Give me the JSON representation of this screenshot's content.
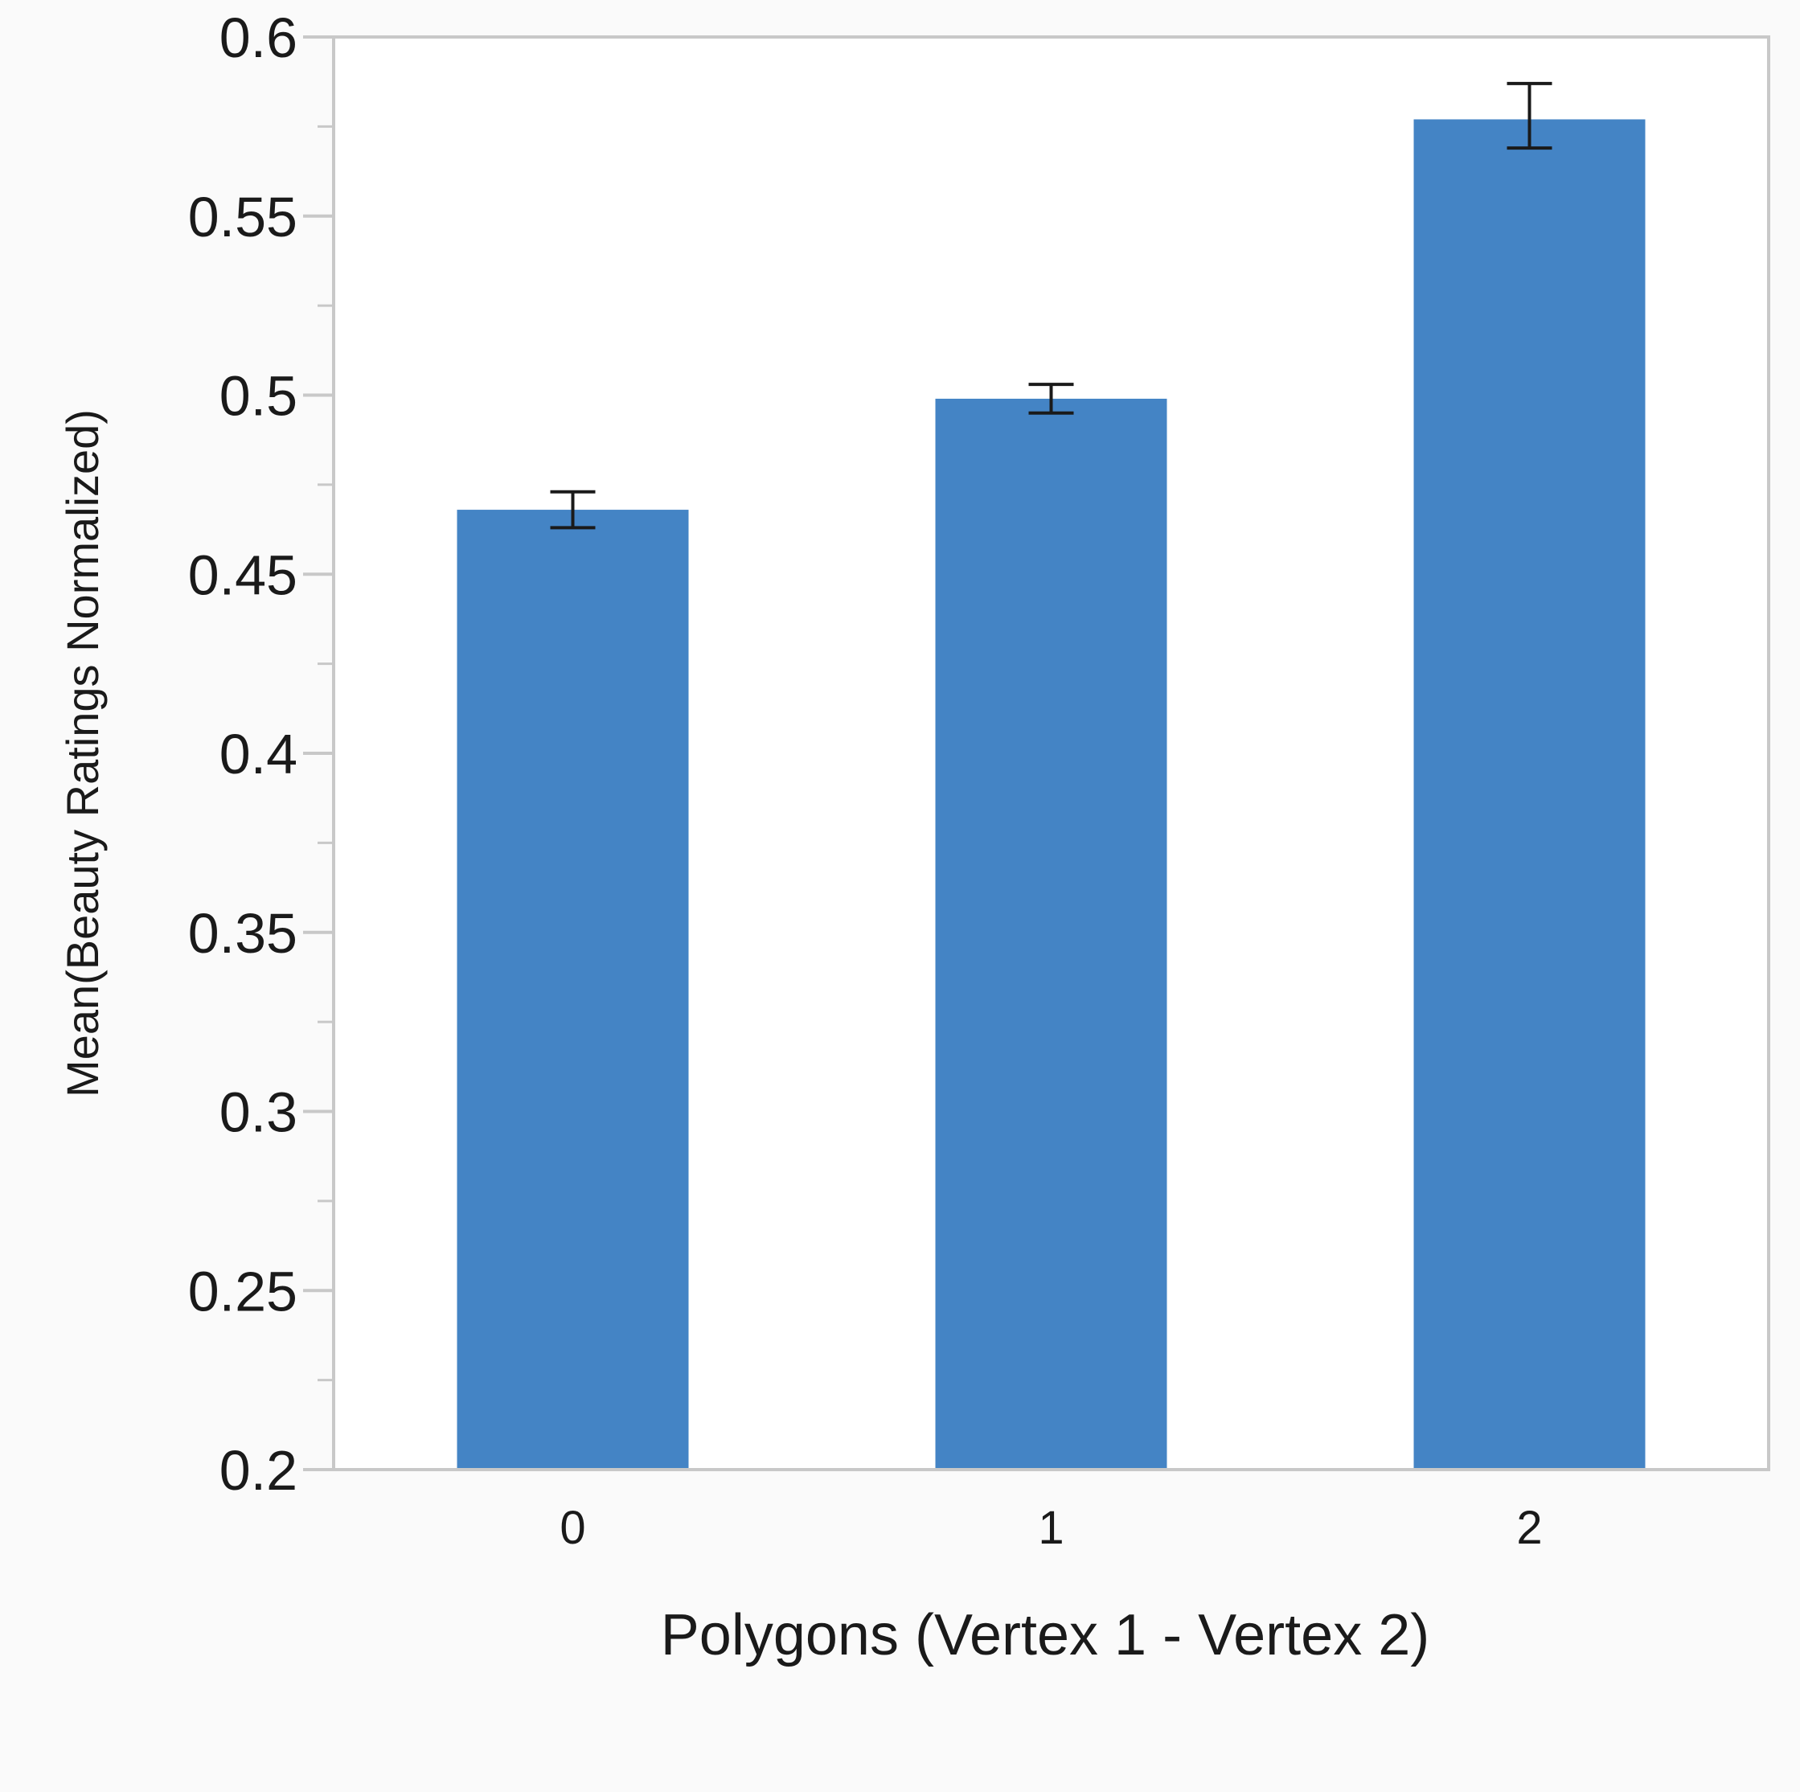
{
  "chart_data": {
    "type": "bar",
    "title": "",
    "xlabel": "Polygons (Vertex 1 - Vertex 2)",
    "ylabel": "Mean(Beauty Ratings Normalized)",
    "categories": [
      "0",
      "1",
      "2"
    ],
    "values": [
      0.468,
      0.499,
      0.577
    ],
    "error": [
      {
        "low": 0.463,
        "high": 0.473
      },
      {
        "low": 0.495,
        "high": 0.503
      },
      {
        "low": 0.569,
        "high": 0.587
      }
    ],
    "ylim": [
      0.2,
      0.6
    ],
    "yticks": [
      0.2,
      0.25,
      0.3,
      0.35,
      0.4,
      0.45,
      0.5,
      0.55,
      0.6
    ],
    "ytick_labels": [
      "0.2",
      "0.25",
      "0.3",
      "0.35",
      "0.4",
      "0.45",
      "0.5",
      "0.55",
      "0.6"
    ],
    "grid": false,
    "legend": "none",
    "colors": {
      "bar": "#4484c5",
      "error_bar": "#1a1a1a",
      "frame": "#c8c8c8",
      "plot_background": "#ffffff",
      "page_background": "#fafafa"
    }
  }
}
